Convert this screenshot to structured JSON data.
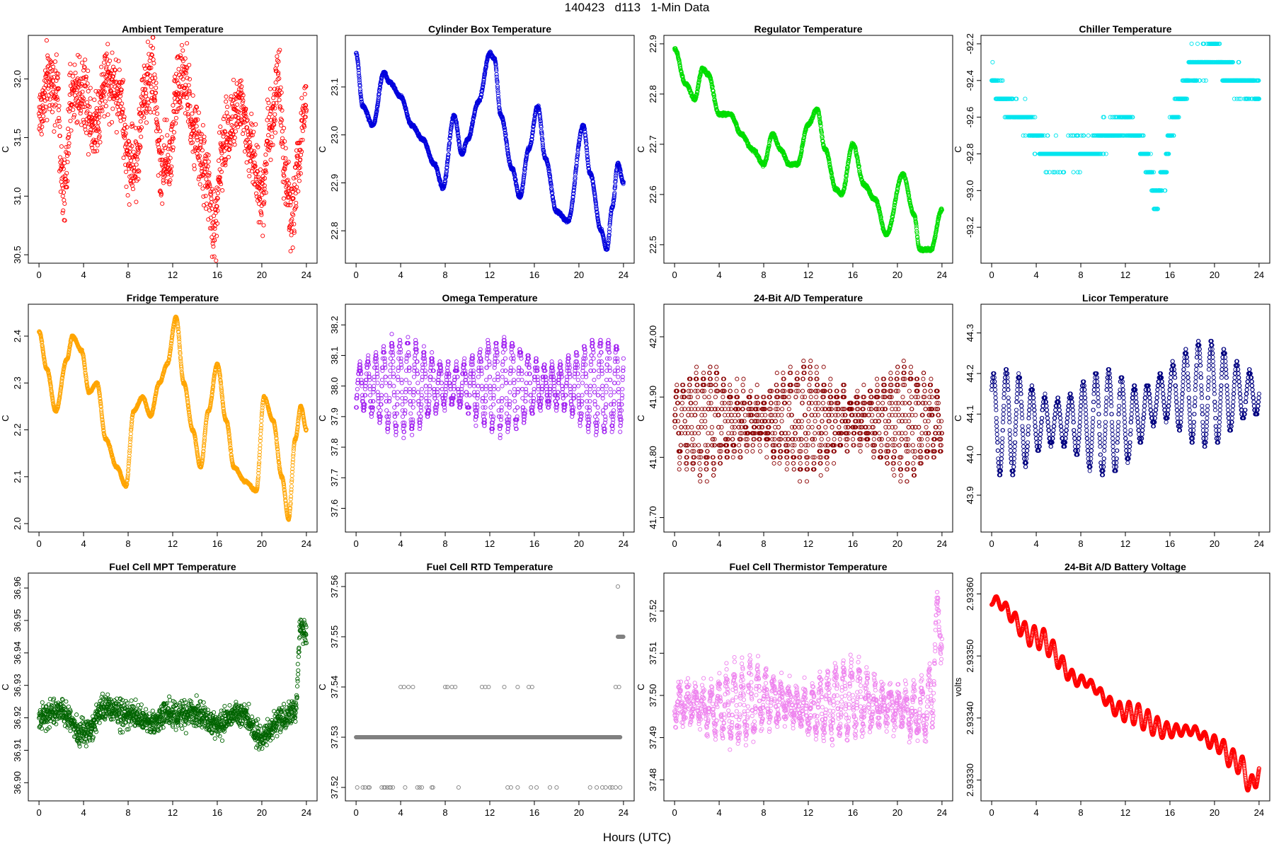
{
  "page": {
    "title": "140423   d113   1-Min Data",
    "xlabel": "Hours (UTC)"
  },
  "chart_data": [
    {
      "type": "scatter",
      "title": "Ambient Temperature",
      "ylabel": "C",
      "color": "#ff0000",
      "xlim": [
        0,
        24
      ],
      "xticks": [
        0,
        4,
        8,
        12,
        16,
        20,
        24
      ],
      "xtick_labels": [
        "0",
        "4",
        "8",
        "12",
        "16",
        "20",
        "24"
      ],
      "ylim": [
        30.5,
        32.3
      ],
      "yticks": [
        30.5,
        31.0,
        31.5,
        32.0
      ],
      "ytick_labels": [
        "30.5",
        "31.0",
        "31.5",
        "32.0"
      ],
      "anchor_hours": [
        0,
        1,
        1.6,
        2.2,
        3,
        4,
        5,
        6,
        7.2,
        8,
        8.7,
        9.5,
        10.2,
        11,
        11.7,
        12.3,
        13,
        14,
        15,
        15.7,
        16.3,
        17,
        18,
        19,
        20,
        20.7,
        21.5,
        22,
        22.7,
        23.3,
        24
      ],
      "anchor_values": [
        31.7,
        32.0,
        31.9,
        31.0,
        31.9,
        31.9,
        31.6,
        32.0,
        31.9,
        31.3,
        31.3,
        31.9,
        32.1,
        31.2,
        31.3,
        31.9,
        32.0,
        31.5,
        31.2,
        30.7,
        31.3,
        31.6,
        31.8,
        31.4,
        31.0,
        31.6,
        32.0,
        31.3,
        30.8,
        31.3,
        31.8
      ],
      "noise": 0.3,
      "n_points": 1440
    },
    {
      "type": "scatter",
      "title": "Cylinder Box Temperature",
      "ylabel": "C",
      "color": "#0000dd",
      "xlim": [
        0,
        24
      ],
      "xticks": [
        0,
        4,
        8,
        12,
        16,
        20,
        24
      ],
      "xtick_labels": [
        "0",
        "4",
        "8",
        "12",
        "16",
        "20",
        "24"
      ],
      "ylim": [
        22.75,
        23.19
      ],
      "yticks": [
        22.8,
        22.9,
        23.0,
        23.1
      ],
      "ytick_labels": [
        "22.8",
        "22.9",
        "23.0",
        "23.1"
      ],
      "anchor_hours": [
        0,
        0.6,
        1.5,
        2.5,
        3,
        4,
        5,
        6,
        7,
        7.8,
        8.8,
        9.5,
        10,
        11,
        12,
        12.4,
        13,
        14,
        14.7,
        15.5,
        16.3,
        17,
        18,
        19,
        20.4,
        21,
        22,
        22.5,
        23,
        23.5,
        24
      ],
      "anchor_values": [
        23.17,
        23.06,
        23.02,
        23.13,
        23.11,
        23.08,
        23.02,
        22.99,
        22.94,
        22.89,
        23.04,
        22.96,
        22.99,
        23.07,
        23.17,
        23.16,
        23.04,
        22.93,
        22.87,
        22.97,
        23.06,
        22.95,
        22.84,
        22.82,
        23.02,
        22.92,
        22.8,
        22.76,
        22.85,
        22.94,
        22.9
      ],
      "noise": 0.003,
      "n_points": 1440
    },
    {
      "type": "scatter",
      "title": "Regulator Temperature",
      "ylabel": "C",
      "color": "#00dd00",
      "xlim": [
        0,
        24
      ],
      "xticks": [
        0,
        4,
        8,
        12,
        16,
        20,
        24
      ],
      "xtick_labels": [
        "0",
        "4",
        "8",
        "12",
        "16",
        "20",
        "24"
      ],
      "ylim": [
        22.48,
        22.9
      ],
      "yticks": [
        22.5,
        22.6,
        22.7,
        22.8,
        22.9
      ],
      "ytick_labels": [
        "22.5",
        "22.6",
        "22.7",
        "22.8",
        "22.9"
      ],
      "anchor_hours": [
        0,
        1,
        1.8,
        2.5,
        3,
        4,
        5,
        6,
        7,
        8,
        8.8,
        9.5,
        10.3,
        11,
        12,
        12.8,
        13.5,
        14.5,
        15,
        16,
        17,
        18,
        19,
        20.5,
        21.5,
        22,
        23,
        24
      ],
      "anchor_values": [
        22.89,
        22.82,
        22.79,
        22.85,
        22.84,
        22.76,
        22.76,
        22.72,
        22.69,
        22.66,
        22.72,
        22.69,
        22.66,
        22.66,
        22.74,
        22.77,
        22.69,
        22.61,
        22.6,
        22.7,
        22.62,
        22.59,
        22.52,
        22.64,
        22.56,
        22.49,
        22.49,
        22.57
      ],
      "noise": 0.003,
      "n_points": 1440
    },
    {
      "type": "scatter",
      "title": "Chiller Temperature",
      "ylabel": "C",
      "color": "#00e5ee",
      "xlim": [
        0,
        24
      ],
      "xticks": [
        0,
        4,
        8,
        12,
        16,
        20,
        24
      ],
      "xtick_labels": [
        "0",
        "4",
        "8",
        "12",
        "16",
        "20",
        "24"
      ],
      "ylim": [
        -93.35,
        -92.2
      ],
      "yticks": [
        -93.2,
        -93.0,
        -92.8,
        -92.6,
        -92.4,
        -92.2
      ],
      "ytick_labels": [
        "-93.2",
        "-93.0",
        "-92.8",
        "-92.6",
        "-92.4",
        "-92.2"
      ],
      "anchor_hours": [
        0,
        1,
        2,
        3,
        4,
        5,
        6,
        7,
        8,
        9,
        10,
        11,
        12,
        13,
        14,
        14.8,
        15.5,
        16,
        16.6,
        17.3,
        18,
        19,
        20,
        21,
        22,
        23,
        24
      ],
      "anchor_values": [
        -92.42,
        -92.5,
        -92.58,
        -92.6,
        -92.72,
        -92.8,
        -92.82,
        -92.8,
        -92.8,
        -92.78,
        -92.72,
        -92.68,
        -92.62,
        -92.7,
        -92.85,
        -93.05,
        -92.9,
        -92.7,
        -92.55,
        -92.45,
        -92.32,
        -92.3,
        -92.25,
        -92.35,
        -92.4,
        -92.42,
        -92.45
      ],
      "noise": 0.06,
      "quantum": 0.1,
      "n_points": 1440
    },
    {
      "type": "scatter",
      "title": "Fridge Temperature",
      "ylabel": "C",
      "color": "#ffa500",
      "xlim": [
        0,
        24
      ],
      "xticks": [
        0,
        4,
        8,
        12,
        16,
        20,
        24
      ],
      "xtick_labels": [
        "0",
        "4",
        "8",
        "12",
        "16",
        "20",
        "24"
      ],
      "ylim": [
        2.0,
        2.45
      ],
      "yticks": [
        2.0,
        2.1,
        2.2,
        2.3,
        2.4
      ],
      "ytick_labels": [
        "2.0",
        "2.1",
        "2.2",
        "2.3",
        "2.4"
      ],
      "anchor_hours": [
        0,
        0.7,
        1.5,
        2.5,
        3,
        3.8,
        4.5,
        5.2,
        6,
        7,
        7.8,
        8.5,
        9.3,
        10,
        10.8,
        11.5,
        12.3,
        13,
        13.8,
        14.5,
        15.2,
        16,
        16.8,
        17.5,
        18.5,
        19.5,
        20.2,
        21,
        21.8,
        22.4,
        23,
        23.5,
        24
      ],
      "anchor_values": [
        2.41,
        2.33,
        2.24,
        2.35,
        2.4,
        2.37,
        2.28,
        2.3,
        2.18,
        2.12,
        2.08,
        2.24,
        2.27,
        2.23,
        2.3,
        2.34,
        2.44,
        2.3,
        2.2,
        2.12,
        2.24,
        2.34,
        2.22,
        2.12,
        2.09,
        2.07,
        2.27,
        2.22,
        2.1,
        2.01,
        2.18,
        2.25,
        2.2
      ],
      "noise": 0.002,
      "n_points": 1440
    },
    {
      "type": "scatter",
      "title": "Omega Temperature",
      "ylabel": "C",
      "color": "#a020f0",
      "xlim": [
        0,
        24
      ],
      "xticks": [
        0,
        4,
        8,
        12,
        16,
        20,
        24
      ],
      "xtick_labels": [
        "0",
        "4",
        "8",
        "12",
        "16",
        "20",
        "24"
      ],
      "ylim": [
        37.55,
        38.24
      ],
      "yticks": [
        37.6,
        37.7,
        37.8,
        37.9,
        38.0,
        38.1,
        38.2
      ],
      "ytick_labels": [
        "37.6",
        "37.7",
        "37.8",
        "37.9",
        "38.0",
        "38.1",
        "38.2"
      ],
      "anchor_hours": [
        0,
        4,
        8,
        12,
        16,
        20,
        24
      ],
      "anchor_values": [
        38.0,
        38.0,
        38.0,
        38.0,
        38.0,
        38.0,
        38.0
      ],
      "noise": 0.02,
      "osc_amp": 0.15,
      "osc_period": 0.72,
      "quantum": 0.01,
      "n_points": 1440
    },
    {
      "type": "scatter",
      "title": "24-Bit A/D Temperature",
      "ylabel": "C",
      "color": "#8b0000",
      "xlim": [
        0,
        24
      ],
      "xticks": [
        0,
        4,
        8,
        12,
        16,
        20,
        24
      ],
      "xtick_labels": [
        "0",
        "4",
        "8",
        "12",
        "16",
        "20",
        "24"
      ],
      "ylim": [
        41.69,
        42.04
      ],
      "yticks": [
        41.7,
        41.8,
        41.9,
        42.0
      ],
      "ytick_labels": [
        "41.70",
        "41.80",
        "41.90",
        "42.00"
      ],
      "anchor_hours": [
        0,
        4,
        8,
        12,
        16,
        20,
        24
      ],
      "anchor_values": [
        41.86,
        41.86,
        41.86,
        41.86,
        41.86,
        41.86,
        41.86
      ],
      "noise": 0.025,
      "osc_amp": 0.08,
      "osc_period": 0.6,
      "quantum": 0.01,
      "n_points": 1440
    },
    {
      "type": "scatter",
      "title": "Licor Temperature",
      "ylabel": "C",
      "color": "#000080",
      "xlim": [
        0,
        24
      ],
      "xticks": [
        0,
        4,
        8,
        12,
        16,
        20,
        24
      ],
      "xtick_labels": [
        "0",
        "4",
        "8",
        "12",
        "16",
        "20",
        "24"
      ],
      "ylim": [
        43.83,
        44.35
      ],
      "yticks": [
        43.9,
        44.0,
        44.1,
        44.2,
        44.3
      ],
      "ytick_labels": [
        "43.9",
        "44.0",
        "44.1",
        "44.2",
        "44.3"
      ],
      "anchor_hours": [
        0,
        4,
        8,
        12,
        16,
        20,
        24
      ],
      "anchor_values": [
        44.08,
        44.08,
        44.08,
        44.08,
        44.15,
        44.15,
        44.15
      ],
      "noise": 0.005,
      "osc_amp": 0.13,
      "osc_period": 1.15,
      "quantum": 0.01,
      "n_points": 1440
    },
    {
      "type": "scatter",
      "title": "Fuel Cell MPT Temperature",
      "ylabel": "C",
      "color": "#006400",
      "xlim": [
        0,
        24
      ],
      "xticks": [
        0,
        4,
        8,
        12,
        16,
        20,
        24
      ],
      "xtick_labels": [
        "0",
        "4",
        "8",
        "12",
        "16",
        "20",
        "24"
      ],
      "ylim": [
        36.897,
        36.962
      ],
      "yticks": [
        36.9,
        36.91,
        36.92,
        36.93,
        36.94,
        36.95,
        36.96
      ],
      "ytick_labels": [
        "36.90",
        "36.91",
        "36.92",
        "36.93",
        "36.94",
        "36.95",
        "36.96"
      ],
      "anchor_hours": [
        0,
        2,
        4,
        6,
        8,
        10,
        12,
        14,
        16,
        18,
        20,
        22,
        23,
        23.5,
        24
      ],
      "anchor_values": [
        36.92,
        36.922,
        36.915,
        36.923,
        36.921,
        36.918,
        36.922,
        36.921,
        36.918,
        36.922,
        36.914,
        36.92,
        36.922,
        36.948,
        36.945
      ],
      "noise": 0.004,
      "n_points": 1440
    },
    {
      "type": "scatter",
      "title": "Fuel Cell RTD Temperature",
      "ylabel": "C",
      "color": "#808080",
      "xlim": [
        0,
        24
      ],
      "xticks": [
        0,
        4,
        8,
        12,
        16,
        20,
        24
      ],
      "xtick_labels": [
        "0",
        "4",
        "8",
        "12",
        "16",
        "20",
        "24"
      ],
      "ylim": [
        37.519,
        37.561
      ],
      "yticks": [
        37.52,
        37.53,
        37.54,
        37.55,
        37.56
      ],
      "ytick_labels": [
        "37.52",
        "37.53",
        "37.54",
        "37.55",
        "37.56"
      ],
      "baseline": 37.53,
      "baseline_hours": [
        0,
        23.7
      ],
      "outliers_low_hours": [
        0.1,
        0.6,
        0.8,
        1.1,
        1.2,
        2.3,
        2.5,
        2.6,
        2.8,
        3.0,
        3.1,
        3.3,
        4.4,
        5.5,
        5.7,
        5.9,
        6.8,
        6.9,
        9.2,
        13.6,
        13.9,
        14.5,
        15.7,
        16.2,
        17.4,
        18.0,
        21.0,
        21.6,
        22.1,
        22.4,
        22.8,
        23.0,
        23.3,
        23.7
      ],
      "outliers_high_hours": [
        4.0,
        4.3,
        4.7,
        5.1,
        8.0,
        8.2,
        8.6,
        8.9,
        11.3,
        11.6,
        11.9,
        13.3,
        14.5,
        15.5,
        15.8,
        23.3,
        23.6
      ],
      "late_hours": [
        23.5,
        24
      ],
      "late_value": 37.55,
      "max_point": [
        23.5,
        37.56
      ]
    },
    {
      "type": "scatter",
      "title": "Fuel Cell Thermistor Temperature",
      "ylabel": "C",
      "color": "#ee82ee",
      "xlim": [
        0,
        24
      ],
      "xticks": [
        0,
        4,
        8,
        12,
        16,
        20,
        24
      ],
      "xtick_labels": [
        "0",
        "4",
        "8",
        "12",
        "16",
        "20",
        "24"
      ],
      "ylim": [
        37.477,
        37.527
      ],
      "yticks": [
        37.48,
        37.49,
        37.5,
        37.51,
        37.52
      ],
      "ytick_labels": [
        "37.48",
        "37.49",
        "37.50",
        "37.51",
        "37.52"
      ],
      "anchor_hours": [
        0,
        4,
        8,
        12,
        16,
        20,
        22,
        23,
        23.5,
        24
      ],
      "anchor_values": [
        37.498,
        37.497,
        37.499,
        37.497,
        37.499,
        37.497,
        37.496,
        37.498,
        37.515,
        37.518
      ],
      "noise": 0.003,
      "osc_amp": 0.008,
      "osc_period": 0.7,
      "n_points": 1440
    },
    {
      "type": "scatter",
      "title": "24-Bit A/D Battery Voltage",
      "ylabel": "volts",
      "color": "#ff0000",
      "xlim": [
        0,
        24
      ],
      "xticks": [
        0,
        4,
        8,
        12,
        16,
        20,
        24
      ],
      "xtick_labels": [
        "0",
        "4",
        "8",
        "12",
        "16",
        "20",
        "24"
      ],
      "ylim": [
        2.93328,
        2.93362
      ],
      "yticks": [
        2.9333,
        2.9334,
        2.9335,
        2.9336
      ],
      "ytick_labels": [
        "2.93330",
        "2.93340",
        "2.93350",
        "2.93360"
      ],
      "anchor_hours": [
        0,
        4,
        8,
        12,
        16,
        18,
        20,
        22,
        23.5,
        24
      ],
      "anchor_values": [
        2.93359,
        2.93353,
        2.93346,
        2.93341,
        2.93338,
        2.93338,
        2.93336,
        2.93333,
        2.93329,
        2.93332
      ],
      "osc_amp": 1.8e-05,
      "osc_period": 0.85,
      "noise": 4e-07,
      "n_points": 1440
    }
  ]
}
